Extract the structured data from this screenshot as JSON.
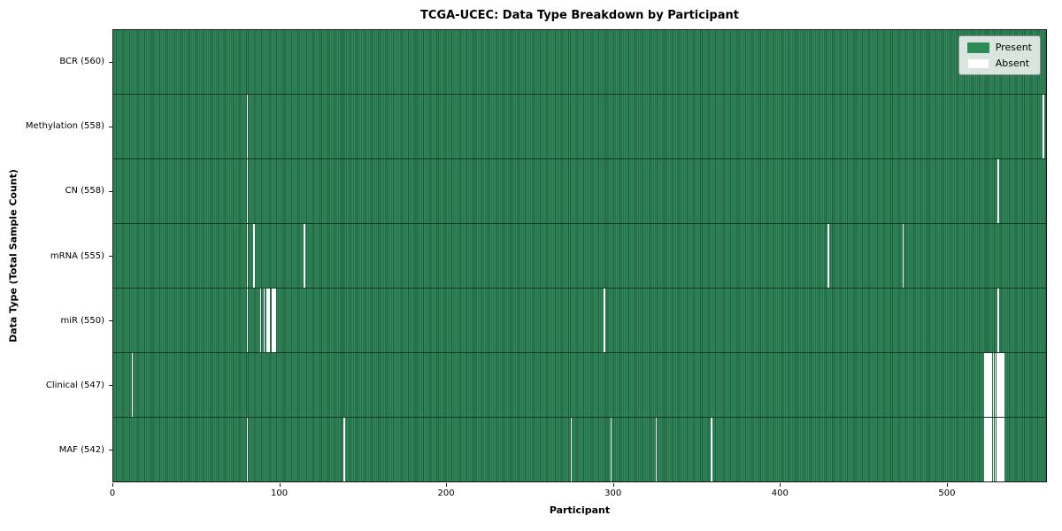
{
  "chart_data": {
    "type": "heatmap",
    "title": "TCGA-UCEC: Data Type Breakdown by Participant",
    "xlabel": "Participant",
    "ylabel": "Data Type (Total Sample Count)",
    "legend": [
      {
        "label": "Present",
        "color": "#2e8b57"
      },
      {
        "label": "Absent",
        "color": "#ffffff"
      }
    ],
    "legend_position": "upper right",
    "grid": false,
    "n_participants": 560,
    "xlim": [
      0,
      560
    ],
    "x_ticks": [
      0,
      100,
      200,
      300,
      400,
      500
    ],
    "present_color": "#2e8b57",
    "cell_edge_color": "#1d5a3a",
    "absent_color": "#ffffff",
    "rows": [
      {
        "label": "BCR (560)",
        "data_type": "BCR",
        "total_sample_count": 560,
        "absent_participants": []
      },
      {
        "label": "Methylation (558)",
        "data_type": "Methylation",
        "total_sample_count": 558,
        "absent_participants": [
          80,
          557
        ]
      },
      {
        "label": "CN (558)",
        "data_type": "CN",
        "total_sample_count": 558,
        "absent_participants": [
          80,
          530
        ]
      },
      {
        "label": "mRNA (555)",
        "data_type": "mRNA",
        "total_sample_count": 555,
        "absent_participants": [
          80,
          84,
          114,
          428,
          473
        ]
      },
      {
        "label": "miR (550)",
        "data_type": "miR",
        "total_sample_count": 550,
        "absent_participants": [
          80,
          88,
          90,
          92,
          93,
          95,
          96,
          97,
          294,
          530
        ]
      },
      {
        "label": "Clinical (547)",
        "data_type": "Clinical",
        "total_sample_count": 547,
        "absent_participants": [
          11,
          522,
          523,
          524,
          525,
          526,
          527,
          528,
          529,
          530,
          531,
          532,
          533
        ]
      },
      {
        "label": "MAF (542)",
        "data_type": "MAF",
        "total_sample_count": 542,
        "absent_participants": [
          80,
          138,
          274,
          298,
          325,
          358,
          522,
          523,
          524,
          525,
          526,
          527,
          528,
          529,
          530,
          531,
          532,
          533
        ]
      }
    ]
  }
}
